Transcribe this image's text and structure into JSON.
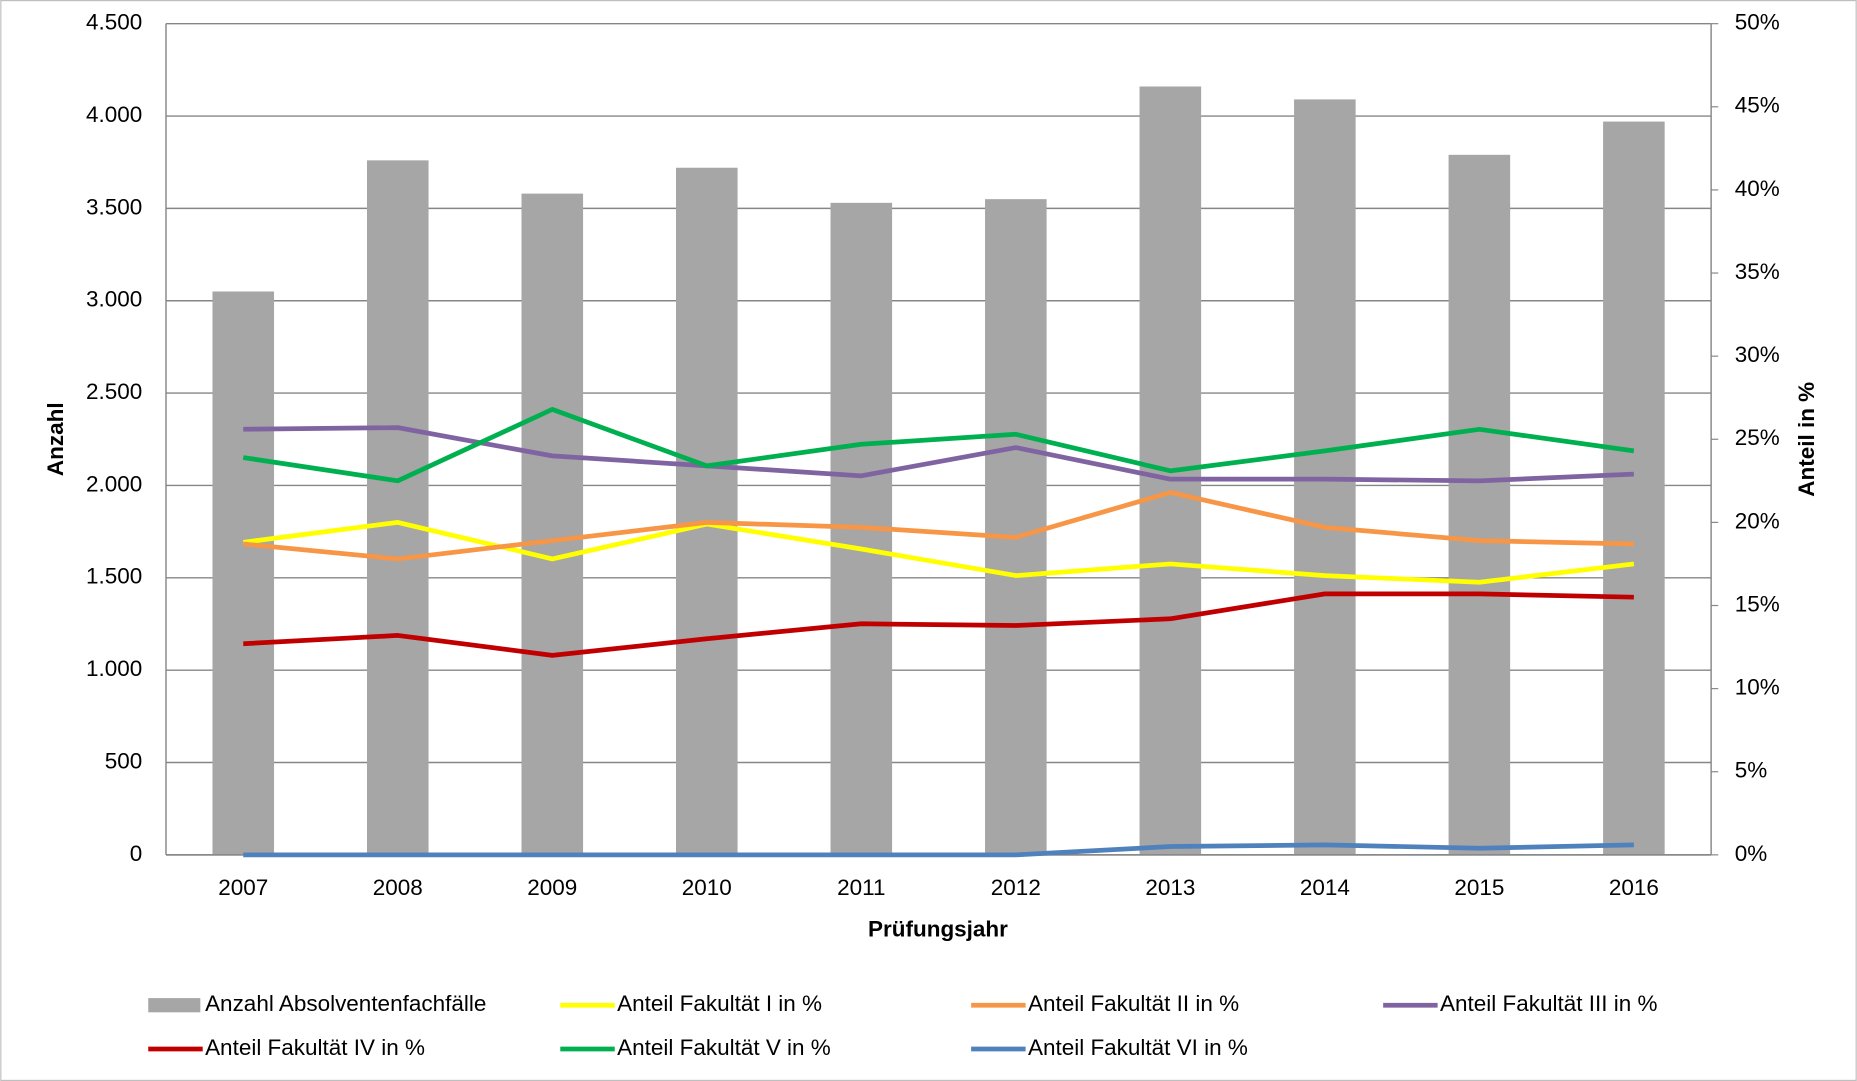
{
  "chart_data": {
    "type": "bar",
    "x_label": "Prüfungsjahr",
    "y_label": "Anzahl",
    "y2_label": "Anteil in %",
    "categories": [
      "2007",
      "2008",
      "2009",
      "2010",
      "2011",
      "2012",
      "2013",
      "2014",
      "2015",
      "2016"
    ],
    "series": [
      {
        "name": "Anzahl Absolventenfachfälle",
        "type": "bar",
        "color": "#a6a6a6",
        "values": [
          3050,
          3760,
          3580,
          3720,
          3530,
          3550,
          4160,
          4090,
          3790,
          3970
        ]
      },
      {
        "name": "Anteil Fakultät I in %",
        "type": "line",
        "axis": "y2",
        "color": "#ffff00",
        "values": [
          18.8,
          20.0,
          17.8,
          19.9,
          18.4,
          16.8,
          17.5,
          16.8,
          16.4,
          17.5
        ]
      },
      {
        "name": "Anteil Fakultät II in %",
        "type": "line",
        "axis": "y2",
        "color": "#f79646",
        "values": [
          18.7,
          17.8,
          18.9,
          20.0,
          19.7,
          19.1,
          21.8,
          19.7,
          18.9,
          18.7
        ]
      },
      {
        "name": "Anteil Fakultät III in %",
        "type": "line",
        "axis": "y2",
        "color": "#8064a2",
        "values": [
          25.6,
          25.7,
          24.0,
          23.4,
          22.8,
          24.5,
          22.6,
          22.6,
          22.5,
          22.9
        ]
      },
      {
        "name": "Anteil Fakultät IV in %",
        "type": "line",
        "axis": "y2",
        "color": "#c00000",
        "values": [
          12.7,
          13.2,
          12.0,
          13.0,
          13.9,
          13.8,
          14.2,
          15.7,
          15.7,
          15.5
        ]
      },
      {
        "name": "Anteil Fakultät V in %",
        "type": "line",
        "axis": "y2",
        "color": "#00b050",
        "values": [
          23.9,
          22.5,
          26.8,
          23.4,
          24.7,
          25.3,
          23.1,
          24.3,
          25.6,
          24.3
        ]
      },
      {
        "name": "Anteil Fakultät VI in %",
        "type": "line",
        "axis": "y2",
        "color": "#4f81bd",
        "values": [
          0,
          0,
          0,
          0,
          0,
          0,
          0.5,
          0.6,
          0.4,
          0.6
        ]
      }
    ],
    "ylim": [
      0,
      4500
    ],
    "yticks": [
      0,
      500,
      {
        "value": 1000,
        "label": "1.000"
      },
      {
        "value": 1500,
        "label": "1.500"
      },
      {
        "value": 2000,
        "label": "2.000"
      },
      {
        "value": 2500,
        "label": "2.500"
      },
      {
        "value": 3000,
        "label": "3.000"
      },
      {
        "value": 3500,
        "label": "3.500"
      },
      {
        "value": 4000,
        "label": "4.000"
      },
      {
        "value": 4500,
        "label": "4.500"
      }
    ],
    "y2lim": [
      0,
      50
    ],
    "y2ticks": [
      {
        "value": 0,
        "label": "0%"
      },
      {
        "value": 5,
        "label": "5%"
      },
      {
        "value": 10,
        "label": "10%"
      },
      {
        "value": 15,
        "label": "15%"
      },
      {
        "value": 20,
        "label": "20%"
      },
      {
        "value": 25,
        "label": "25%"
      },
      {
        "value": 30,
        "label": "30%"
      },
      {
        "value": 35,
        "label": "35%"
      },
      {
        "value": 40,
        "label": "40%"
      },
      {
        "value": 45,
        "label": "45%"
      },
      {
        "value": 50,
        "label": "50%"
      }
    ],
    "grid": true,
    "legend": "bottom"
  }
}
